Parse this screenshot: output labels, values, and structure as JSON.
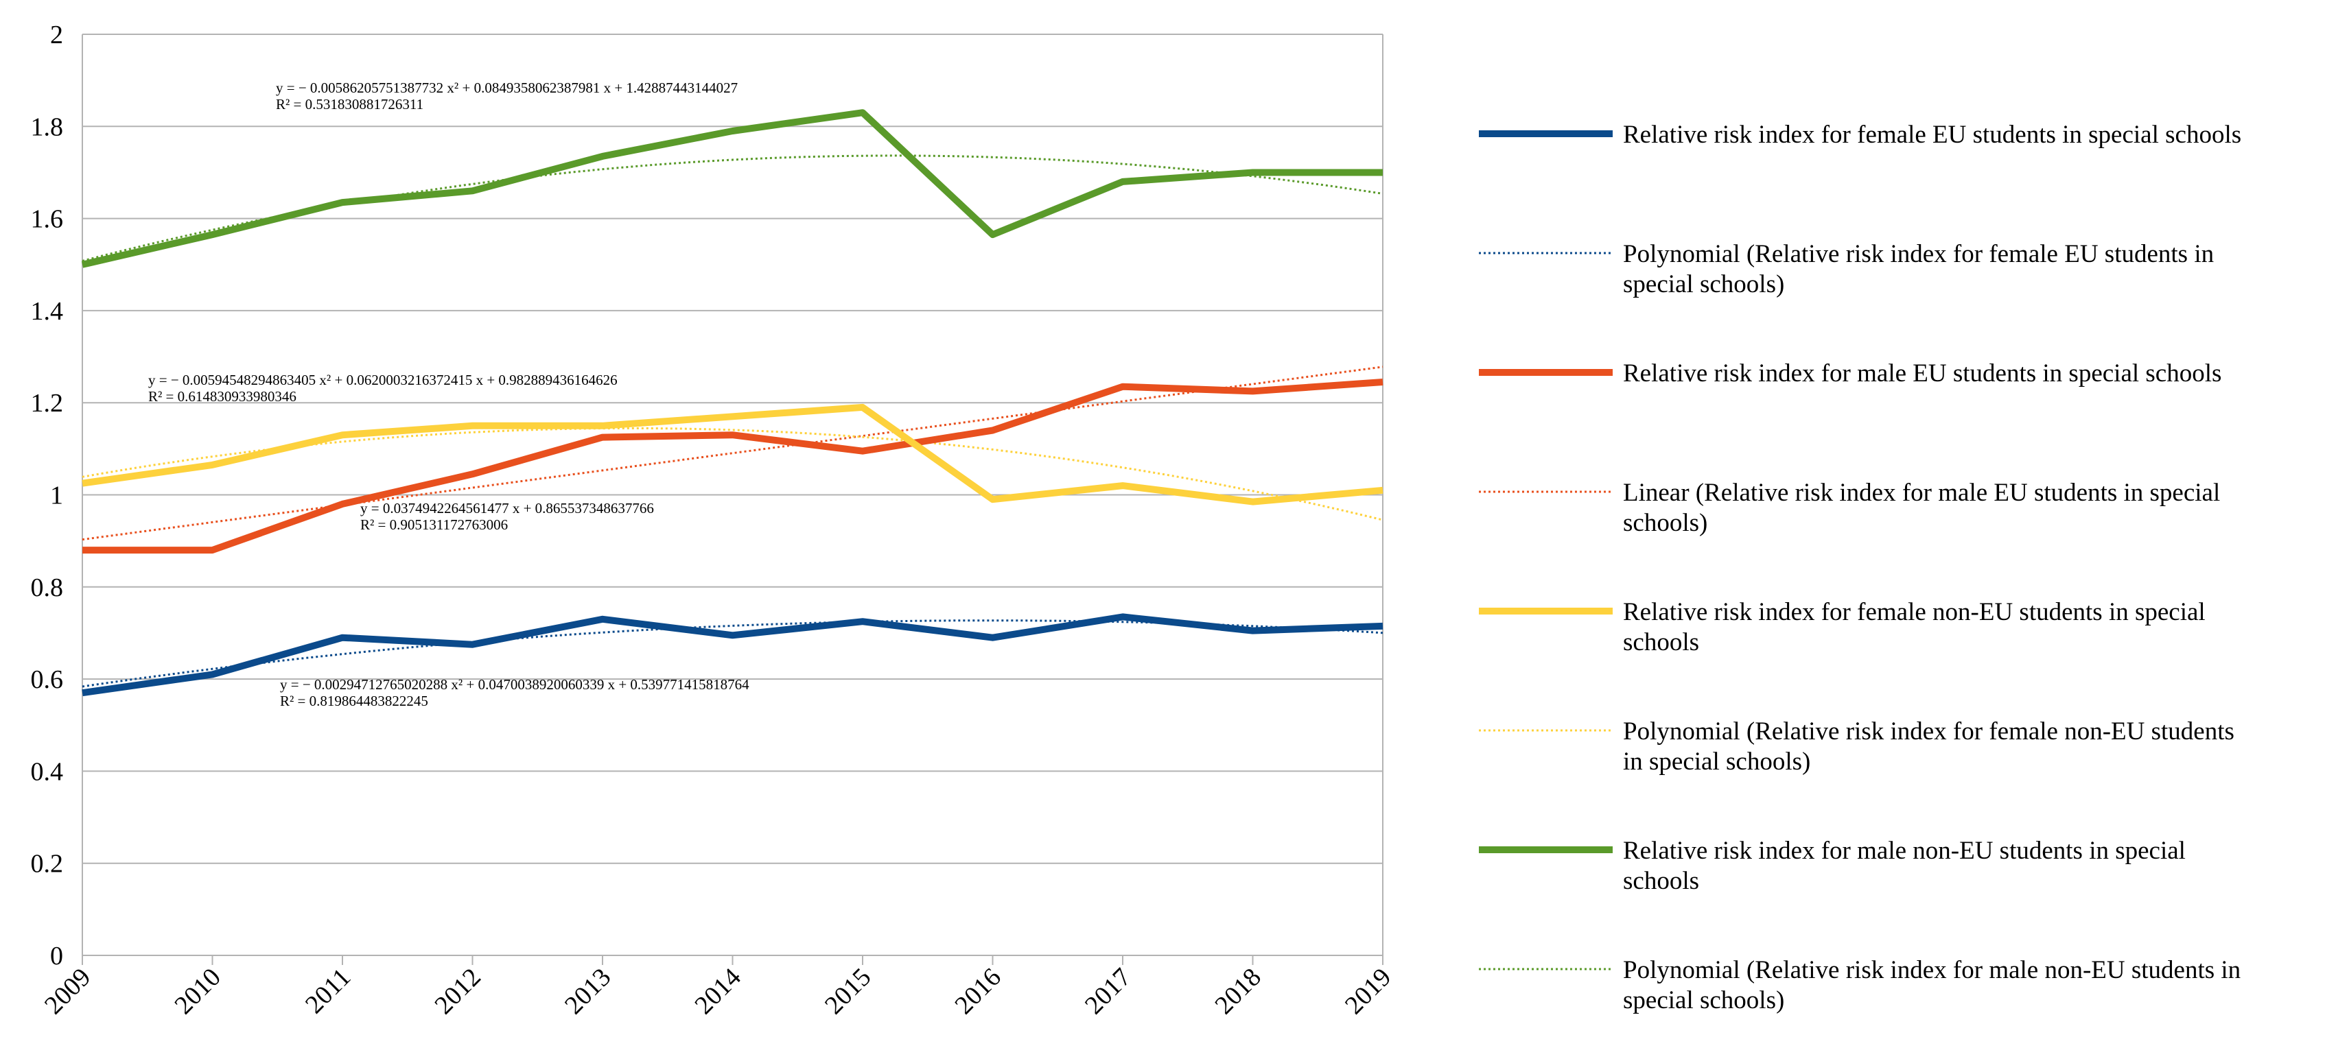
{
  "chart_data": {
    "type": "line",
    "title": "",
    "xlabel": "",
    "ylabel": "",
    "x": [
      2009,
      2010,
      2011,
      2012,
      2013,
      2014,
      2015,
      2016,
      2017,
      2018,
      2019
    ],
    "x_tick_labels": [
      "2009",
      "2010",
      "2011",
      "2012",
      "2013",
      "2014",
      "2015",
      "2016",
      "2017",
      "2018",
      "2019"
    ],
    "ylim": [
      0,
      2
    ],
    "y_ticks": [
      0,
      0.2,
      0.4,
      0.6,
      0.8,
      1,
      1.2,
      1.4,
      1.6,
      1.8,
      2
    ],
    "y_tick_labels": [
      "0",
      "0.2",
      "0.4",
      "0.6",
      "0.8",
      "1",
      "1.2",
      "1.4",
      "1.6",
      "1.8",
      "2"
    ],
    "grid": true,
    "legend_position": "right",
    "series": [
      {
        "name": "Relative risk index for female EU students in special schools",
        "color": "#0b4a8b",
        "values": [
          0.57,
          0.61,
          0.69,
          0.675,
          0.73,
          0.695,
          0.725,
          0.69,
          0.735,
          0.705,
          0.715
        ]
      },
      {
        "name": "Relative risk index for male EU students in special schools",
        "color": "#e8501e",
        "values": [
          0.88,
          0.88,
          0.98,
          1.045,
          1.125,
          1.13,
          1.095,
          1.14,
          1.235,
          1.225,
          1.245
        ]
      },
      {
        "name": "Relative risk index for female non-EU students in special schools",
        "color": "#fdd13c",
        "values": [
          1.025,
          1.065,
          1.13,
          1.15,
          1.15,
          1.17,
          1.19,
          0.99,
          1.02,
          0.985,
          1.01
        ]
      },
      {
        "name": "Relative risk index for male non-EU students in special schools",
        "color": "#5a9a2a",
        "values": [
          1.5,
          1.565,
          1.635,
          1.66,
          1.735,
          1.79,
          1.83,
          1.565,
          1.68,
          1.7,
          1.7
        ]
      }
    ],
    "trendlines": [
      {
        "name": "Polynomial (Relative risk index for female EU students in special schools)",
        "of_series": 0,
        "kind": "polynomial",
        "color": "#0b4a8b",
        "coef": [
          -0.00294712765020288,
          0.0470038920060339,
          0.539771415818764
        ],
        "equation": "y = − 0.00294712765020288 x² + 0.0470038920060339 x + 0.539771415818764",
        "r2": "R² = 0.819864483822245"
      },
      {
        "name": "Linear (Relative risk index for male EU students in special schools)",
        "of_series": 1,
        "kind": "linear",
        "color": "#e8501e",
        "coef": [
          0,
          0.0374942264561477,
          0.865537348637766
        ],
        "equation": "y = 0.0374942264561477 x + 0.865537348637766",
        "r2": "R² = 0.905131172763006"
      },
      {
        "name": "Polynomial (Relative risk index for female non-EU students in special schools)",
        "of_series": 2,
        "kind": "polynomial",
        "color": "#fdd13c",
        "coef": [
          -0.00594548294863405,
          0.0620003216372415,
          0.982889436164626
        ],
        "equation": "y = − 0.00594548294863405 x² + 0.0620003216372415 x + 0.982889436164626",
        "r2": "R² = 0.614830933980346"
      },
      {
        "name": "Polynomial (Relative risk index for male non-EU students in special schools)",
        "of_series": 3,
        "kind": "polynomial",
        "color": "#5a9a2a",
        "coef": [
          -0.00586205751387732,
          0.0849358062387981,
          1.42887443144027
        ],
        "equation": "y = − 0.00586205751387732 x² + 0.0849358062387981 x + 1.42887443144027",
        "r2": "R² = 0.531830881726311"
      }
    ],
    "legend": [
      {
        "label_lines": [
          "Relative risk index for female EU students in special schools"
        ],
        "color": "#0b4a8b",
        "style": "solid"
      },
      {
        "label_lines": [
          "Polynomial (Relative risk index for female EU students in",
          "special schools)"
        ],
        "color": "#0b4a8b",
        "style": "dotted"
      },
      {
        "label_lines": [
          "Relative risk index for male EU students in special schools"
        ],
        "color": "#e8501e",
        "style": "solid"
      },
      {
        "label_lines": [
          "Linear (Relative risk index for male EU students in special",
          "schools)"
        ],
        "color": "#e8501e",
        "style": "dotted"
      },
      {
        "label_lines": [
          "Relative risk index for female non-EU students in special",
          "schools"
        ],
        "color": "#fdd13c",
        "style": "solid"
      },
      {
        "label_lines": [
          "Polynomial (Relative risk index for female non-EU students",
          "in special schools)"
        ],
        "color": "#fdd13c",
        "style": "dotted"
      },
      {
        "label_lines": [
          "Relative risk index for male non-EU students in special",
          "schools"
        ],
        "color": "#5a9a2a",
        "style": "solid"
      },
      {
        "label_lines": [
          "Polynomial (Relative risk index for male non-EU students in",
          "special schools)"
        ],
        "color": "#5a9a2a",
        "style": "dotted"
      }
    ]
  }
}
